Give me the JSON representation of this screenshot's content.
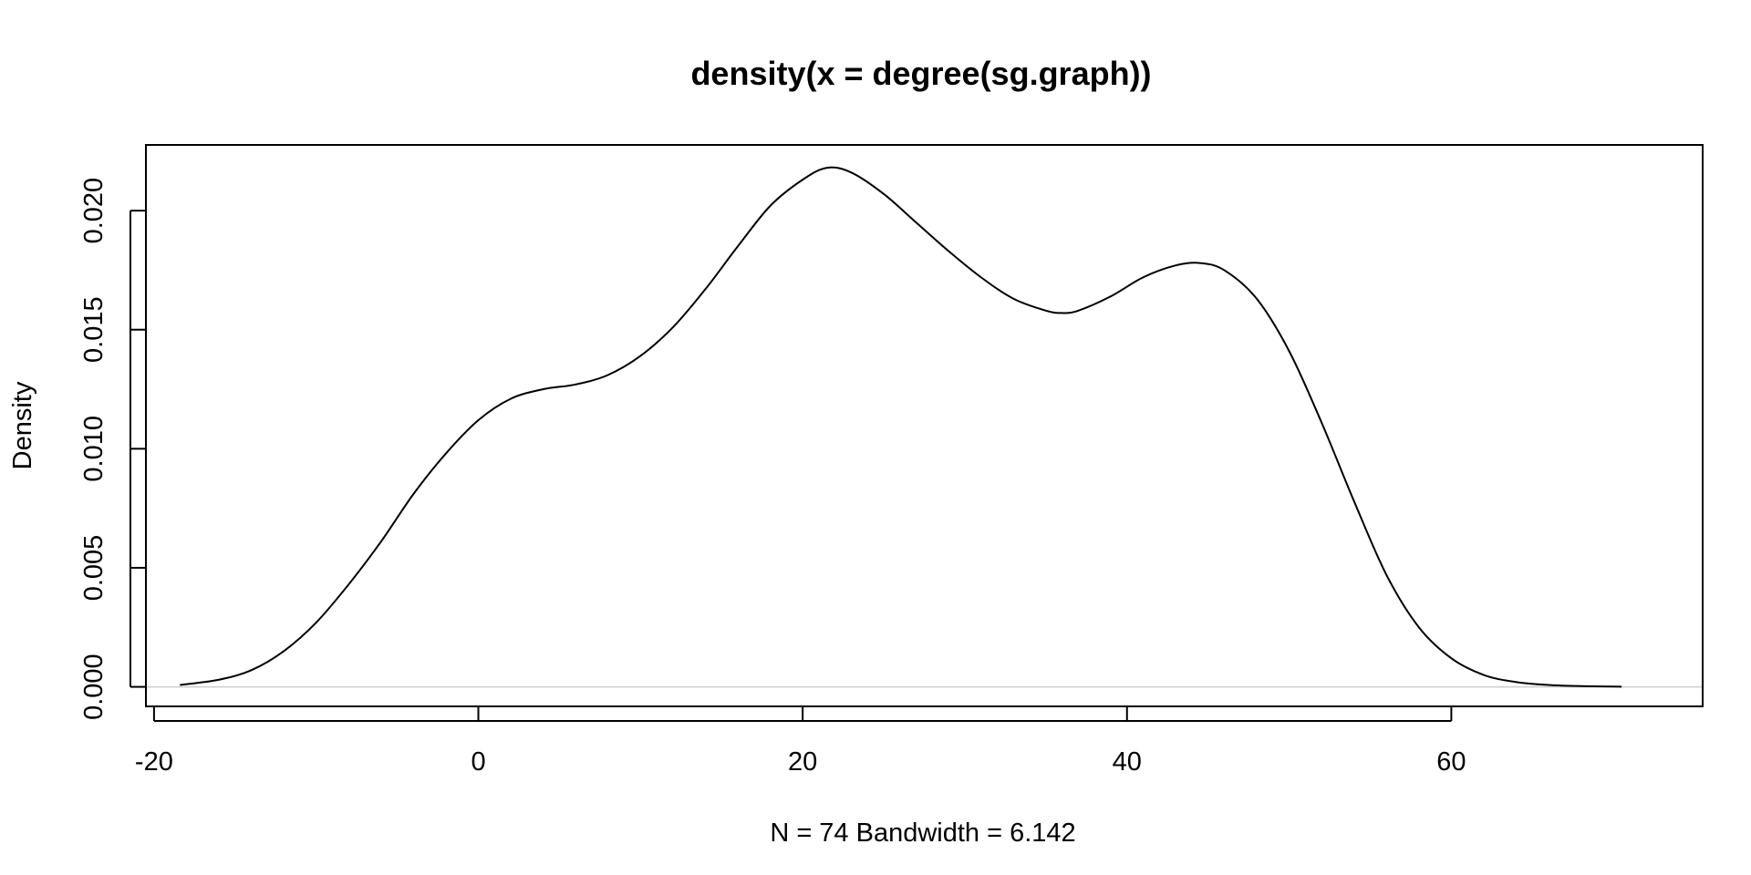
{
  "chart_data": {
    "type": "line",
    "title": "density(x = degree(sg.graph))",
    "xlabel": "N = 74   Bandwidth = 6.142",
    "ylabel": "Density",
    "xlim": [
      -20.5,
      75.5
    ],
    "ylim": [
      -0.00082,
      0.02276
    ],
    "grid": false,
    "legend": "none",
    "x_ticks": [
      -20,
      0,
      20,
      40,
      60
    ],
    "x_tick_labels": [
      "-20",
      "0",
      "20",
      "40",
      "60"
    ],
    "y_ticks": [
      0,
      0.005,
      0.01,
      0.015,
      0.02
    ],
    "y_tick_labels": [
      "0.000",
      "0.005",
      "0.010",
      "0.015",
      "0.020"
    ],
    "baseline": {
      "y": 0,
      "color": "#cccccc"
    },
    "series": [
      {
        "color": "#000000",
        "x": [
          -18.4,
          -16,
          -14,
          -12,
          -10,
          -8,
          -6,
          -4,
          -2,
          0,
          2,
          4,
          6,
          8,
          10,
          12,
          14,
          16,
          18,
          20,
          21.5,
          23,
          25,
          27,
          29,
          31,
          33,
          35,
          36,
          37,
          39,
          41,
          43,
          44.5,
          46,
          48,
          50,
          52,
          54,
          56,
          58,
          60,
          62,
          64,
          66,
          68,
          70.5
        ],
        "y": [
          8e-05,
          0.0003,
          0.0007,
          0.0015,
          0.0027,
          0.0043,
          0.0061,
          0.0081,
          0.0098,
          0.0112,
          0.0121,
          0.0125,
          0.0127,
          0.0131,
          0.0139,
          0.0151,
          0.0167,
          0.0185,
          0.0202,
          0.0213,
          0.0218,
          0.0216,
          0.0207,
          0.0195,
          0.0183,
          0.0172,
          0.0163,
          0.0158,
          0.0157,
          0.0158,
          0.0164,
          0.0172,
          0.0177,
          0.0178,
          0.0175,
          0.0163,
          0.0141,
          0.0111,
          0.0078,
          0.0047,
          0.0025,
          0.0012,
          0.0005,
          0.0002,
          8e-05,
          3e-05,
          1e-05
        ]
      }
    ]
  }
}
